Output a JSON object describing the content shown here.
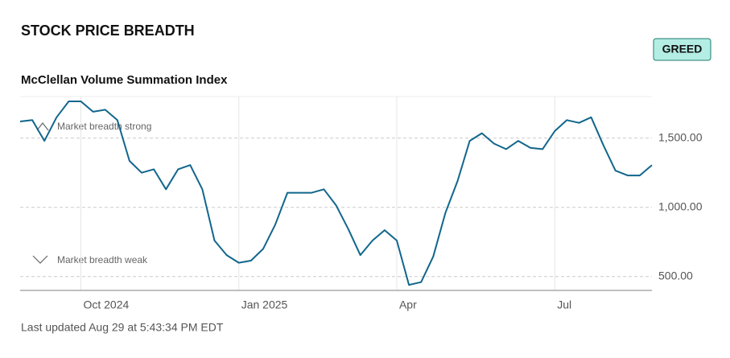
{
  "header": {
    "title": "STOCK PRICE BREADTH",
    "badge": "GREED"
  },
  "chart_data": {
    "type": "line",
    "title": "McClellan Volume Summation Index",
    "annotations": [
      "Market breadth strong",
      "Market breadth weak"
    ],
    "categories": [
      null,
      null,
      null,
      null,
      null,
      "Oct 2024",
      null,
      null,
      null,
      null,
      null,
      null,
      null,
      null,
      null,
      null,
      null,
      null,
      "Jan 2025",
      null,
      null,
      null,
      null,
      null,
      null,
      null,
      null,
      null,
      null,
      null,
      null,
      "Apr",
      null,
      null,
      null,
      null,
      null,
      null,
      null,
      null,
      null,
      null,
      null,
      null,
      "Jul",
      null,
      null,
      null,
      null,
      null,
      null,
      null,
      null
    ],
    "values": [
      1620,
      1630,
      1480,
      1650,
      1765,
      1765,
      1690,
      1705,
      1630,
      1335,
      1250,
      1275,
      1130,
      1275,
      1305,
      1130,
      760,
      655,
      600,
      615,
      700,
      875,
      1105,
      1105,
      1105,
      1130,
      1015,
      845,
      655,
      760,
      835,
      760,
      440,
      460,
      645,
      960,
      1190,
      1480,
      1535,
      1460,
      1420,
      1480,
      1430,
      1420,
      1550,
      1630,
      1610,
      1650,
      1450,
      1265,
      1230,
      1230,
      1305
    ],
    "color": "#11668c",
    "ylim": [
      400,
      1800
    ],
    "yticks": [
      {
        "value": 500,
        "label": "500.00"
      },
      {
        "value": 1000,
        "label": "1,000.00"
      },
      {
        "value": 1500,
        "label": "1,500.00"
      }
    ],
    "grid": true
  },
  "footer": "Last updated Aug 29 at 5:43:34 PM EDT"
}
